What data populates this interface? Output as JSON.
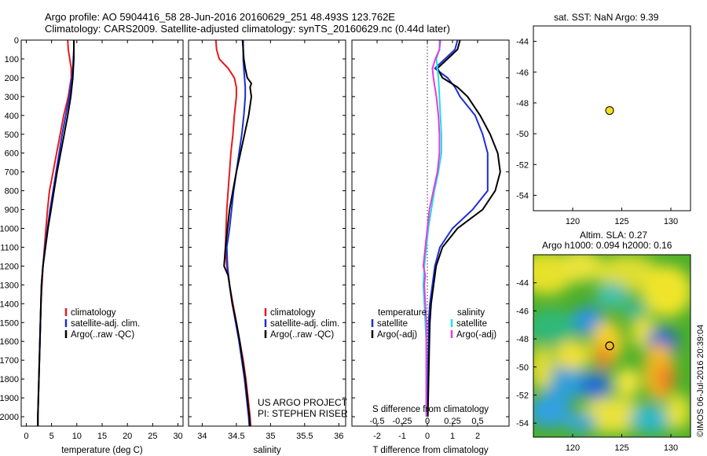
{
  "header": {
    "line1": "Argo profile: AO 5904416_58 28-Jun-2016 20160629_251 48.493S 123.762E",
    "line2": "Climatology: CARS2009. Satellite-adjusted climatology: synTS_20160629.nc (0.44d later)"
  },
  "right_panels": {
    "sst_title": "sat. SST: NaN Argo: 9.39",
    "sla_title1": "Altim. SLA: 0.27",
    "sla_title2": "Argo h1000: 0.094 h2000: 0.16",
    "credit": "©IMOS 06-Jul-2016 20:39:04"
  },
  "text_notes": {
    "project1": "US ARGO PROJECT",
    "project2": "PI: STEPHEN RISER"
  },
  "colors": {
    "climatology": "#e41a1c",
    "satellite": "#1a2ed6",
    "argo": "#000000",
    "sal_satellite": "#22dede",
    "sal_argo": "#e23ce2",
    "marker_fill": "#f2e01c"
  },
  "chart_data": [
    {
      "type": "line",
      "xlabel": "temperature (deg C)",
      "ylabel": "",
      "xlim": [
        -1,
        31
      ],
      "ylim": [
        2050,
        0
      ],
      "xticks": [
        "0",
        "5",
        "10",
        "15",
        "20",
        "25",
        "30"
      ],
      "yticks": [
        "0",
        "100",
        "200",
        "300",
        "400",
        "500",
        "600",
        "700",
        "800",
        "900",
        "1000",
        "1100",
        "1200",
        "1300",
        "1400",
        "1500",
        "1600",
        "1700",
        "1800",
        "1900",
        "2000"
      ],
      "legend": [
        "climatology",
        "satellite-adj. clim.",
        "Argo(..raw -QC)"
      ],
      "legend_position": "bottom-center",
      "series": [
        {
          "name": "climatology",
          "depth": [
            0,
            50,
            100,
            150,
            200,
            300,
            400,
            500,
            600,
            700,
            800,
            900,
            1000,
            1100,
            1200,
            1300,
            1400,
            1600,
            1800,
            2000,
            2050
          ],
          "values": [
            8.2,
            8.3,
            8.6,
            8.9,
            8.9,
            8.3,
            7.4,
            6.7,
            6.0,
            5.3,
            4.6,
            4.2,
            3.9,
            3.6,
            3.3,
            3.1,
            2.9,
            2.7,
            2.5,
            2.3,
            2.3
          ]
        },
        {
          "name": "satellite-adj. clim.",
          "depth": [
            0,
            50,
            100,
            150,
            200,
            300,
            400,
            500,
            600,
            700,
            800,
            900,
            1000,
            1100,
            1200,
            1300,
            1400,
            1600,
            1800,
            2000,
            2050
          ],
          "values": [
            9.4,
            9.4,
            9.3,
            9.2,
            9.0,
            8.5,
            7.8,
            7.1,
            6.5,
            5.9,
            5.3,
            4.7,
            4.2,
            3.7,
            3.3,
            3.0,
            2.9,
            2.7,
            2.5,
            2.3,
            2.3
          ]
        },
        {
          "name": "Argo(..raw -QC)",
          "depth": [
            0,
            50,
            100,
            150,
            200,
            300,
            400,
            500,
            600,
            700,
            800,
            900,
            1000,
            1100,
            1200,
            1300,
            1400,
            1600,
            1800,
            2000,
            2050
          ],
          "values": [
            9.4,
            9.4,
            9.4,
            9.3,
            9.2,
            8.8,
            8.2,
            7.5,
            6.8,
            6.1,
            5.5,
            4.9,
            4.3,
            3.8,
            3.3,
            3.0,
            2.9,
            2.7,
            2.5,
            2.3,
            2.3
          ]
        }
      ]
    },
    {
      "type": "line",
      "xlabel": "salinity",
      "ylabel": "",
      "xlim": [
        33.8,
        36.1
      ],
      "ylim": [
        2050,
        0
      ],
      "xticks": [
        "34",
        "34.5",
        "35",
        "35.5",
        "36"
      ],
      "legend": [
        "climatology",
        "satellite-adj. clim.",
        "Argo(..raw -QC)"
      ],
      "legend_position": "bottom-center",
      "series": [
        {
          "name": "climatology",
          "depth": [
            0,
            50,
            100,
            150,
            200,
            250,
            300,
            400,
            500,
            600,
            700,
            800,
            900,
            1000,
            1100,
            1200,
            1300,
            1400,
            1500,
            1600,
            1700,
            1800,
            1900,
            2000,
            2050
          ],
          "values": [
            34.2,
            34.21,
            34.25,
            34.38,
            34.47,
            34.5,
            34.5,
            34.47,
            34.45,
            34.42,
            34.4,
            34.38,
            34.36,
            34.35,
            34.34,
            34.36,
            34.4,
            34.45,
            34.5,
            34.55,
            34.6,
            34.64,
            34.67,
            34.7,
            34.71
          ]
        },
        {
          "name": "satellite-adj. clim.",
          "depth": [
            0,
            50,
            100,
            150,
            200,
            250,
            300,
            400,
            500,
            600,
            700,
            800,
            900,
            1000,
            1100,
            1200,
            1300,
            1400,
            1500,
            1600,
            1700,
            1800,
            1900,
            2000,
            2050
          ],
          "values": [
            34.6,
            34.6,
            34.6,
            34.61,
            34.62,
            34.63,
            34.63,
            34.61,
            34.58,
            34.54,
            34.5,
            34.46,
            34.43,
            34.4,
            34.36,
            34.37,
            34.4,
            34.44,
            34.49,
            34.54,
            34.58,
            34.62,
            34.65,
            34.68,
            34.69
          ]
        },
        {
          "name": "Argo(..raw -QC)",
          "depth": [
            0,
            50,
            100,
            150,
            200,
            230,
            250,
            300,
            400,
            500,
            600,
            700,
            800,
            900,
            1000,
            1100,
            1200,
            1250,
            1300,
            1400,
            1500,
            1600,
            1700,
            1800,
            1900,
            2000,
            2050
          ],
          "values": [
            34.59,
            34.6,
            34.61,
            34.63,
            34.66,
            34.72,
            34.7,
            34.72,
            34.68,
            34.62,
            34.56,
            34.5,
            34.45,
            34.4,
            34.37,
            34.34,
            34.32,
            34.38,
            34.4,
            34.44,
            34.5,
            34.55,
            34.59,
            34.63,
            34.66,
            34.69,
            34.7
          ]
        }
      ]
    },
    {
      "type": "line",
      "xlabel": "T difference from climatology",
      "xlabel2": "S difference from climatology",
      "ylabel": "",
      "xlim": [
        -3,
        3.25
      ],
      "xlim_top": [
        -0.75,
        0.8125
      ],
      "ylim": [
        2050,
        0
      ],
      "xticks": [
        "-2",
        "-1",
        "0",
        "1",
        "2"
      ],
      "xticks_S": [
        "-0.5",
        "-0.25",
        "0",
        "0.25",
        "0.5"
      ],
      "legend_titles": [
        "temperature",
        "salinity"
      ],
      "legend": [
        "satellite",
        "Argo(-adj)",
        "satellite",
        "Argo(-adj)"
      ],
      "legend_position": "bottom-center",
      "series": [
        {
          "name": "satellite",
          "quantity": "temperature",
          "depth": [
            0,
            50,
            100,
            150,
            200,
            250,
            300,
            400,
            500,
            600,
            700,
            800,
            900,
            1000,
            1100,
            1200,
            1300,
            1400,
            1500,
            1600,
            1800,
            2000
          ],
          "values": [
            1.2,
            1.1,
            0.7,
            0.3,
            0.8,
            1.1,
            1.3,
            1.9,
            2.2,
            2.4,
            2.4,
            2.4,
            1.8,
            1.0,
            0.5,
            0.3,
            0.2,
            0.1,
            0.05,
            0.05,
            0.02,
            0.0
          ]
        },
        {
          "name": "Argo(-adj)",
          "quantity": "temperature",
          "depth": [
            0,
            50,
            100,
            150,
            200,
            250,
            300,
            400,
            500,
            600,
            700,
            800,
            900,
            1000,
            1100,
            1200,
            1300,
            1400,
            1500,
            1600,
            1800,
            2000
          ],
          "values": [
            1.3,
            1.2,
            0.8,
            0.4,
            0.6,
            1.2,
            1.6,
            2.1,
            2.5,
            2.8,
            2.9,
            2.7,
            2.2,
            1.2,
            0.6,
            0.35,
            0.25,
            0.15,
            0.1,
            0.08,
            0.05,
            0.02
          ]
        },
        {
          "name": "satellite",
          "quantity": "salinity",
          "depth": [
            0,
            50,
            100,
            150,
            200,
            300,
            400,
            500,
            600,
            700,
            800,
            900,
            1000,
            1100,
            1200,
            1300,
            1400,
            1500,
            1600,
            1800,
            2000
          ],
          "values": [
            0.12,
            0.12,
            0.09,
            0.1,
            0.11,
            0.12,
            0.13,
            0.14,
            0.14,
            0.11,
            0.07,
            0.04,
            0.01,
            -0.01,
            -0.03,
            -0.04,
            -0.03,
            -0.02,
            -0.01,
            -0.01,
            -0.01
          ]
        },
        {
          "name": "Argo(-adj)",
          "quantity": "salinity",
          "depth": [
            0,
            50,
            100,
            150,
            200,
            300,
            400,
            500,
            600,
            700,
            800,
            900,
            1000,
            1100,
            1200,
            1250,
            1300,
            1400,
            1500,
            1600,
            1800,
            2000
          ],
          "values": [
            0.13,
            0.12,
            0.08,
            0.05,
            0.06,
            0.09,
            0.11,
            0.12,
            0.12,
            0.1,
            0.06,
            0.02,
            0.0,
            -0.02,
            -0.04,
            -0.02,
            -0.03,
            -0.02,
            -0.01,
            -0.01,
            -0.01,
            -0.01
          ]
        }
      ]
    },
    {
      "type": "scatter",
      "title": "sat. SST: NaN Argo: 9.39",
      "xlim": [
        116,
        132
      ],
      "ylim": [
        -55,
        -43
      ],
      "xticks": [
        "120",
        "125",
        "130"
      ],
      "yticks": [
        "-44",
        "-46",
        "-48",
        "-50",
        "-52",
        "-54"
      ],
      "points": [
        {
          "x": 123.762,
          "y": -48.493
        }
      ]
    },
    {
      "type": "heatmap",
      "title": "Altim. SLA: 0.27",
      "subtitle": "Argo h1000: 0.094 h2000: 0.16",
      "xlim": [
        116,
        132
      ],
      "ylim": [
        -55,
        -42
      ],
      "xticks": [
        "120",
        "125",
        "130"
      ],
      "yticks": [
        "-44",
        "-46",
        "-48",
        "-50",
        "-52",
        "-54"
      ],
      "points": [
        {
          "x": 123.762,
          "y": -48.493
        }
      ]
    }
  ]
}
